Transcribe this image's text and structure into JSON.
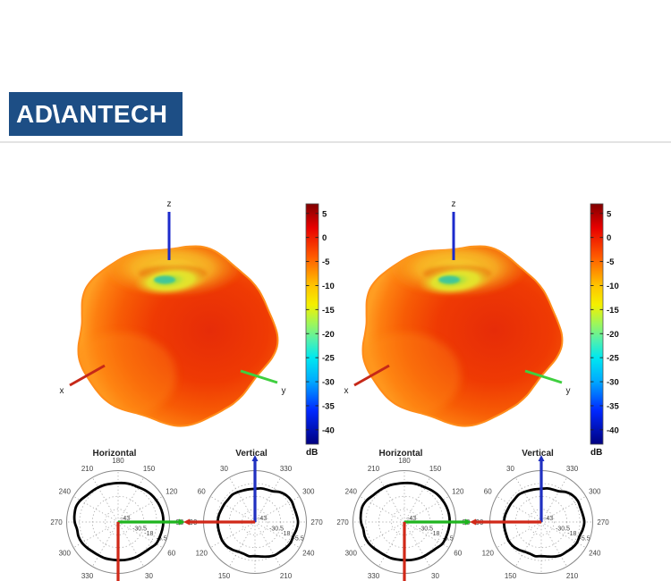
{
  "header": {
    "logo_text": "ADVANTECH",
    "logo_bg": "#1d4e85",
    "rule_color": "#e3e3e3"
  },
  "figure": {
    "plots_3d": [
      {
        "name": "3d-radiation-pattern-1",
        "axis_labels": {
          "x": "x",
          "y": "y",
          "z": "z"
        },
        "axis_colors": {
          "x": "#c62818",
          "y": "#3fcf3f",
          "z": "#1c2bcc"
        }
      },
      {
        "name": "3d-radiation-pattern-2",
        "axis_labels": {
          "x": "x",
          "y": "y",
          "z": "z"
        },
        "axis_colors": {
          "x": "#c62818",
          "y": "#3fcf3f",
          "z": "#1c2bcc"
        }
      }
    ],
    "surface_palette": {
      "body_center": "#e62c08",
      "body_mid": "#f75c05",
      "body_edge": "#ff9d22",
      "top_wash": "#f6df35",
      "dimple_ring": "#e9e62a",
      "dimple_core": "#3ec69e"
    },
    "colorbar": {
      "unit": "dB",
      "ticks": [
        5,
        0,
        -5,
        -10,
        -15,
        -20,
        -25,
        -30,
        -35,
        -40
      ],
      "max": 7,
      "min": -43,
      "jet_stops": [
        [
          0,
          "#7f0000"
        ],
        [
          0.1,
          "#e80000"
        ],
        [
          0.22,
          "#ff5a00"
        ],
        [
          0.34,
          "#ffc400"
        ],
        [
          0.42,
          "#f4f000"
        ],
        [
          0.5,
          "#9cf65c"
        ],
        [
          0.57,
          "#4ff0b0"
        ],
        [
          0.64,
          "#00e8f0"
        ],
        [
          0.74,
          "#00a8ff"
        ],
        [
          0.86,
          "#0028ff"
        ],
        [
          1,
          "#00007f"
        ]
      ]
    },
    "polar_plots": [
      {
        "title": "Horizontal",
        "angle_labels": [
          "180",
          "150",
          "120",
          "90",
          "60",
          "30",
          "",
          "330",
          "300",
          "270",
          "240",
          "210"
        ],
        "ring_labels": [
          "-43",
          "-30.5",
          "-18",
          "-5.5"
        ],
        "ring_db": [
          -43,
          -30.5,
          -18,
          -5.5
        ],
        "range_db": [
          -43,
          7
        ],
        "pattern_db": [
          -5.1,
          -4.6,
          -4.2,
          -3.8,
          -2.5,
          -1.2,
          -0.3,
          0.5,
          1.0,
          1.0,
          0.5,
          0,
          -0.4,
          -2.9,
          -4.2,
          -4.6,
          -5.1,
          -5.5,
          -5.9,
          -5.9,
          -5.5,
          -5.5,
          -5.1,
          -3.8,
          -2.5,
          -2.0,
          -2.5,
          -0.8,
          0,
          0.5,
          -0.8,
          -2.9,
          -3.8,
          -4.2,
          -4.6,
          -5.1
        ],
        "axes": [
          {
            "name": "y-axis",
            "dir": "right",
            "color": "#1eb41e"
          },
          {
            "name": "x-axis",
            "dir": "down",
            "color": "#d02818"
          }
        ]
      },
      {
        "title": "Vertical",
        "angle_labels": [
          "",
          "330",
          "300",
          "270",
          "240",
          "210",
          "",
          "150",
          "120",
          "90",
          "60",
          "30"
        ],
        "ring_labels": [
          "-43",
          "-30.5",
          "-18",
          "-5.5"
        ],
        "ring_db": [
          -43,
          -30.5,
          -18,
          -5.5
        ],
        "range_db": [
          -43,
          7
        ],
        "pattern_db": [
          -10.7,
          -9.8,
          -9.4,
          -8.5,
          -5.1,
          -2.9,
          -2.0,
          -2.5,
          -2.0,
          -1.2,
          -2.0,
          -3.3,
          -2.9,
          -3.8,
          -5.1,
          -5.5,
          -7.2,
          -8.9,
          -9.8,
          -9.3,
          -10.2,
          -9.8,
          -8.1,
          -6.8,
          -6.4,
          -6.8,
          -6.8,
          -6.8,
          -7.2,
          -8.1,
          -8.5,
          -8.9,
          -8.5,
          -9.4,
          -10.2,
          -10.7
        ],
        "axes": [
          {
            "name": "z-axis",
            "dir": "up",
            "color": "#2030c0",
            "arrow": true
          },
          {
            "name": "x-axis",
            "dir": "left",
            "color": "#d02818"
          }
        ]
      },
      {
        "title": "Horizontal",
        "angle_labels": [
          "180",
          "150",
          "120",
          "90",
          "60",
          "30",
          "",
          "330",
          "300",
          "270",
          "240",
          "210"
        ],
        "ring_labels": [
          "-43",
          "-30.5",
          "-18",
          "-5.5"
        ],
        "ring_db": [
          -43,
          -30.5,
          -18,
          -5.5
        ],
        "range_db": [
          -43,
          7
        ],
        "pattern_db": [
          -5.1,
          -4.6,
          -4.2,
          -3.8,
          -2.5,
          -1.2,
          -0.3,
          0.5,
          1.0,
          1.0,
          0.5,
          0,
          -0.4,
          -2.9,
          -4.2,
          -4.6,
          -5.1,
          -5.5,
          -5.9,
          -5.9,
          -5.5,
          -5.5,
          -5.1,
          -3.8,
          -2.5,
          -2.0,
          -2.5,
          -0.8,
          0,
          0.5,
          -0.8,
          -2.9,
          -3.8,
          -4.2,
          -4.6,
          -5.1
        ],
        "axes": [
          {
            "name": "y-axis",
            "dir": "right",
            "color": "#1eb41e"
          },
          {
            "name": "x-axis",
            "dir": "down",
            "color": "#d02818"
          }
        ]
      },
      {
        "title": "Vertical",
        "angle_labels": [
          "",
          "330",
          "300",
          "270",
          "240",
          "210",
          "",
          "150",
          "120",
          "90",
          "60",
          "30"
        ],
        "ring_labels": [
          "-43",
          "-30.5",
          "-18",
          "-5.5"
        ],
        "ring_db": [
          -43,
          -30.5,
          -18,
          -5.5
        ],
        "range_db": [
          -43,
          7
        ],
        "pattern_db": [
          -10.7,
          -9.8,
          -9.4,
          -8.5,
          -5.1,
          -2.9,
          -2.0,
          -2.5,
          -2.0,
          -1.2,
          -2.0,
          -3.3,
          -2.9,
          -3.8,
          -5.1,
          -5.5,
          -7.2,
          -8.9,
          -9.8,
          -9.3,
          -10.2,
          -9.8,
          -8.1,
          -6.8,
          -6.4,
          -6.8,
          -6.8,
          -6.8,
          -7.2,
          -8.1,
          -8.5,
          -8.9,
          -8.5,
          -9.4,
          -10.2,
          -10.7
        ],
        "axes": [
          {
            "name": "z-axis",
            "dir": "up",
            "color": "#2030c0",
            "arrow": true
          },
          {
            "name": "x-axis",
            "dir": "left",
            "color": "#d02818"
          }
        ]
      }
    ]
  }
}
